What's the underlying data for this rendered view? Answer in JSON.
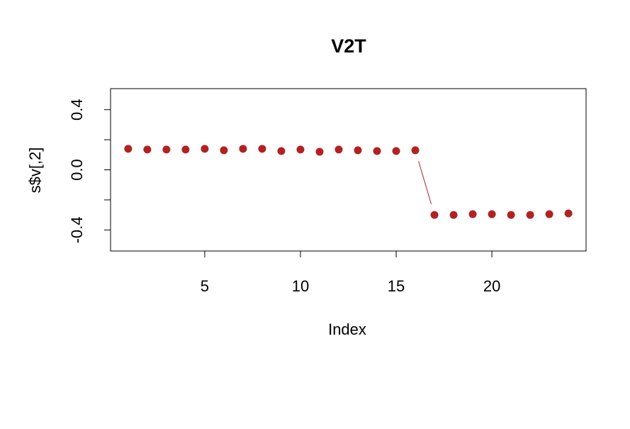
{
  "chart_data": {
    "type": "scatter",
    "title": "V2T",
    "xlabel": "Index",
    "ylabel": "s$v[,2]",
    "x_ticks": [
      5,
      10,
      15,
      20
    ],
    "x_tick_labels": [
      "5",
      "10",
      "15",
      "20"
    ],
    "y_ticks": [
      -0.4,
      -0.2,
      0.0,
      0.2,
      0.4
    ],
    "y_tick_labels": [
      "-0.4",
      "",
      "0.0",
      "",
      "0.4"
    ],
    "xlim": [
      0.08,
      24.92
    ],
    "ylim": [
      -0.54,
      0.54
    ],
    "grid": false,
    "legend": "none",
    "point_color": "#B22222",
    "series": [
      {
        "x": [
          1,
          2,
          3,
          4,
          5,
          6,
          7,
          8,
          9,
          10,
          11,
          12,
          13,
          14,
          15,
          16,
          17,
          18,
          19,
          20,
          21,
          22,
          23,
          24
        ],
        "values": [
          0.14,
          0.135,
          0.135,
          0.135,
          0.14,
          0.13,
          0.14,
          0.14,
          0.125,
          0.135,
          0.12,
          0.135,
          0.13,
          0.125,
          0.125,
          0.13,
          -0.3,
          -0.3,
          -0.295,
          -0.295,
          -0.3,
          -0.3,
          -0.295,
          -0.29
        ]
      }
    ],
    "annotation_line": {
      "from": [
        16,
        0.13
      ],
      "to": [
        17,
        -0.3
      ],
      "color": "#B22222"
    }
  }
}
